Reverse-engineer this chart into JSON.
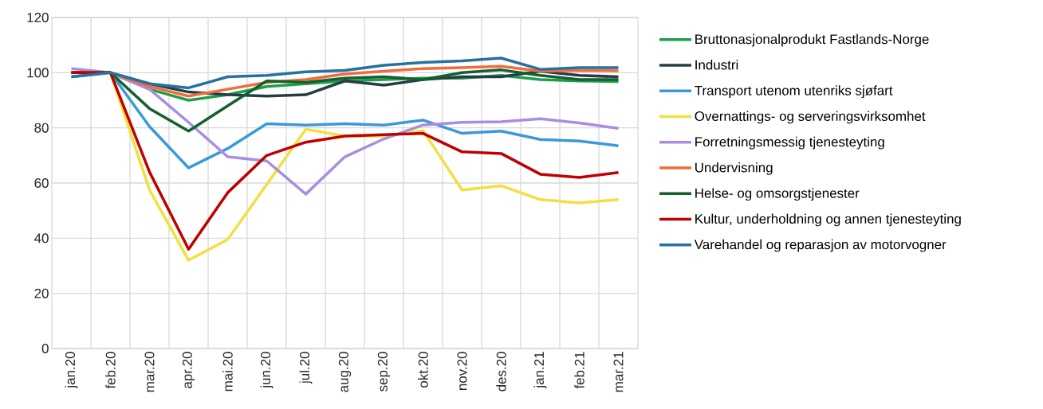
{
  "chart_data": {
    "type": "line",
    "categories": [
      "jan.20",
      "feb.20",
      "mar.20",
      "apr.20",
      "mai.20",
      "jun.20",
      "jul.20",
      "aug.20",
      "sep.20",
      "okt.20",
      "nov.20",
      "des.20",
      "jan.21",
      "feb.21",
      "mar.21"
    ],
    "series": [
      {
        "name": "Bruttonasjonalprodukt Fastlands-Norge",
        "color": "#1e9e4a",
        "values": [
          100,
          100,
          94,
          90,
          92,
          95,
          96,
          97,
          97.5,
          98,
          98,
          99,
          97.5,
          97,
          96.8
        ]
      },
      {
        "name": "Industri",
        "color": "#263d47",
        "values": [
          100,
          100,
          96,
          93,
          92,
          91.5,
          92,
          97,
          95.5,
          97.5,
          98.5,
          98.5,
          100.5,
          99,
          98.5
        ]
      },
      {
        "name": "Transport utenom utenriks sjøfart",
        "color": "#3a9ad9",
        "values": [
          98.5,
          100,
          80.5,
          65.5,
          72.5,
          81.5,
          81,
          81.5,
          81,
          82.8,
          78,
          78.8,
          75.8,
          75.2,
          73.5
        ]
      },
      {
        "name": "Overnattings- og serveringsvirksomhet",
        "color": "#f0e040",
        "values": [
          null,
          100,
          57.5,
          32,
          39.5,
          59.5,
          79.5,
          77,
          77,
          79,
          57.5,
          59,
          54,
          52.8,
          54
        ]
      },
      {
        "name": "Forretningsmessig tjenesteyting",
        "color": "#a98de3",
        "values": [
          101.5,
          100,
          94,
          82,
          69.5,
          68,
          56,
          69.5,
          76,
          81,
          82,
          82.2,
          83.3,
          81.8,
          79.8
        ]
      },
      {
        "name": "Undervisning",
        "color": "#f26b3a",
        "values": [
          100,
          100,
          95,
          91.5,
          94,
          96.5,
          97.5,
          99.5,
          100.5,
          101.5,
          101.8,
          102.3,
          100.5,
          100.8,
          100.7
        ]
      },
      {
        "name": "Helse- og omsorgstjenester",
        "color": "#14602e",
        "values": [
          100,
          100,
          87,
          78.8,
          88,
          97,
          96.5,
          98,
          98.5,
          97.5,
          100,
          101,
          99,
          97.5,
          97.5
        ]
      },
      {
        "name": "Kultur, underholdning og annen tjenesteyting",
        "color": "#c00000",
        "values": [
          100,
          100,
          64,
          36,
          56.5,
          70,
          74.8,
          77,
          77.5,
          78,
          71.3,
          70.7,
          63.2,
          62,
          63.8
        ]
      },
      {
        "name": "Varehandel og reparasjon av motorvogner",
        "color": "#2671a0",
        "values": [
          98.5,
          100,
          96,
          94.5,
          98.5,
          99,
          100.3,
          100.8,
          102.7,
          103.7,
          104.3,
          105.3,
          101.2,
          101.8,
          101.8
        ]
      }
    ],
    "ylim": [
      0,
      120
    ],
    "yticks": [
      0,
      20,
      40,
      60,
      80,
      100,
      120
    ],
    "grid": true,
    "legend": "right",
    "marker": "none",
    "line_style": "solid"
  }
}
